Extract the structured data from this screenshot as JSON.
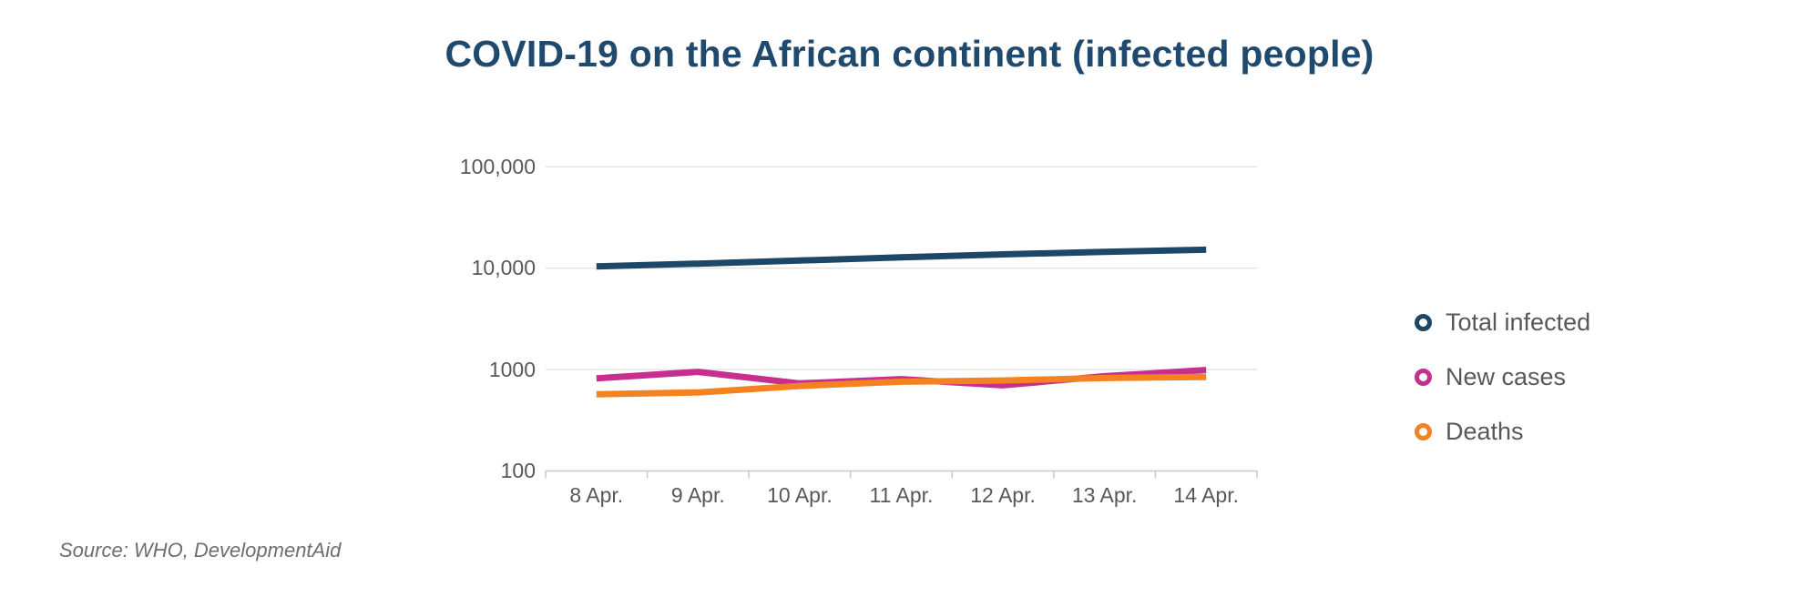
{
  "chart_data": {
    "type": "line",
    "title": "COVID-19 on the African continent (infected people)",
    "source_note": "Source: WHO, DevelopmentAid",
    "categories": [
      "8 Apr.",
      "9 Apr.",
      "10 Apr.",
      "11 Apr.",
      "12 Apr.",
      "13 Apr.",
      "14 Apr."
    ],
    "series": [
      {
        "name": "Total infected",
        "color": "#1d4767",
        "values": [
          10400,
          11100,
          11900,
          12800,
          13700,
          14500,
          15200
        ]
      },
      {
        "name": "New cases",
        "color": "#c62f8d",
        "values": [
          820,
          950,
          730,
          805,
          700,
          860,
          990
        ]
      },
      {
        "name": "Deaths",
        "color": "#f58220",
        "values": [
          570,
          595,
          690,
          760,
          780,
          825,
          845
        ]
      }
    ],
    "y_axis": {
      "scale": "log",
      "range": [
        100,
        100000
      ],
      "ticks": [
        100,
        1000,
        10000,
        100000
      ],
      "tick_labels": [
        "100",
        "1000",
        "10,000",
        "100,000"
      ]
    },
    "x_axis": {
      "label": ""
    },
    "grid": "horizontal",
    "legend_position": "right",
    "colors": {
      "title": "#1f4a6e",
      "axis_text": "#58585a",
      "gridline": "#d9d9d9",
      "axis_line": "#c9c9c9",
      "source_text": "#6d6e71"
    }
  }
}
